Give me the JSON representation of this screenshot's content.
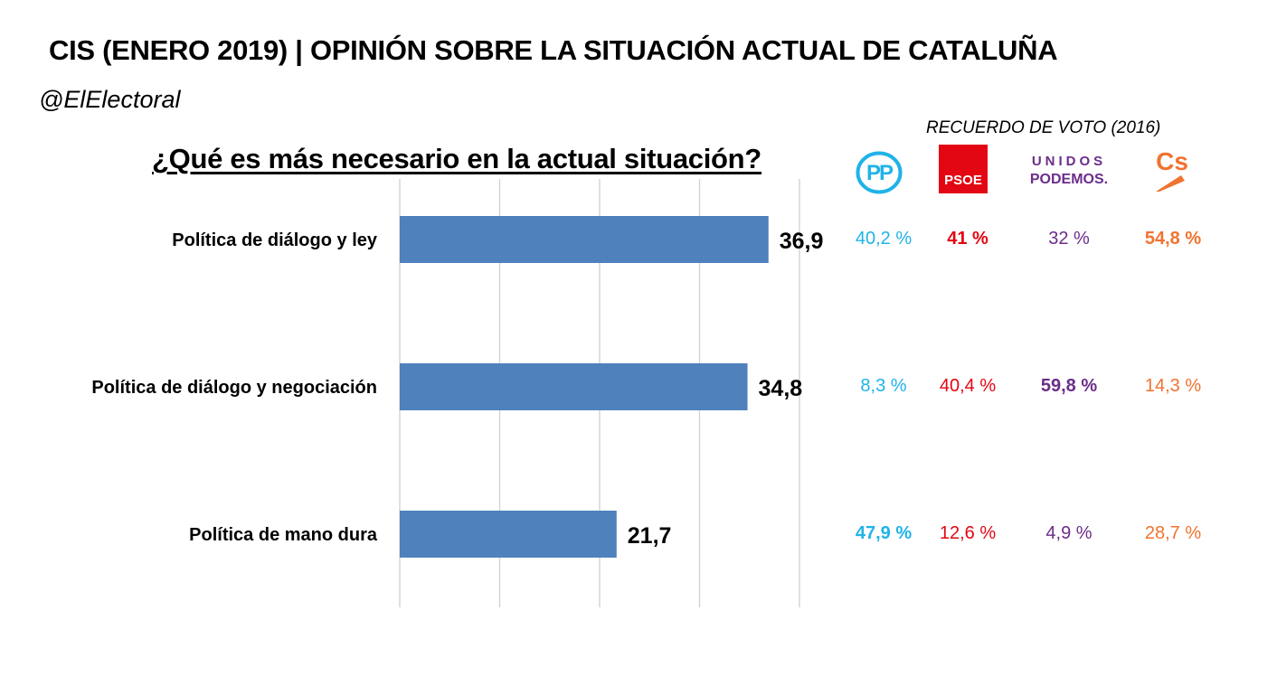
{
  "header": {
    "title": "CIS (ENERO 2019) | OPINIÓN SOBRE LA SITUACIÓN ACTUAL DE CATALUÑA",
    "handle": "@ElElectoral"
  },
  "chart_data": {
    "type": "bar",
    "orientation": "horizontal",
    "title": "¿Qué es más necesario en la actual situación?",
    "categories": [
      "Política de diálogo y ley",
      "Política de diálogo y negociación",
      "Política de mano dura"
    ],
    "values": [
      36.9,
      34.8,
      21.7
    ],
    "value_labels": [
      "36,9",
      "34,8",
      "21,7"
    ],
    "xlim": [
      0,
      40
    ],
    "grid": true,
    "bar_color": "#4f81bd"
  },
  "vote_recall": {
    "header": "RECUERDO DE VOTO (2016)",
    "parties": [
      {
        "logo_icon": "pp-logo-icon",
        "logo_text": "PP",
        "color": "#1fb3e8",
        "values": [
          "40,2 %",
          "8,3 %",
          "47,9 %"
        ],
        "bold": [
          false,
          false,
          true
        ]
      },
      {
        "logo_icon": "psoe-logo-icon",
        "logo_text": "PSOE",
        "color": "#e30613",
        "values": [
          "41 %",
          "40,4 %",
          "12,6 %"
        ],
        "bold": [
          true,
          false,
          false
        ]
      },
      {
        "logo_icon": "unidos-podemos-logo-icon",
        "logo_text_top": "UNIDOS",
        "logo_text_bottom": "PODEMOS.",
        "color": "#6b2d8a",
        "values": [
          "32 %",
          "59,8 %",
          "4,9 %"
        ],
        "bold": [
          false,
          true,
          false
        ]
      },
      {
        "logo_icon": "ciudadanos-logo-icon",
        "logo_text": "Cs",
        "color": "#f07330",
        "values": [
          "54,8 %",
          "14,3 %",
          "28,7 %"
        ],
        "bold": [
          true,
          false,
          false
        ]
      }
    ]
  }
}
